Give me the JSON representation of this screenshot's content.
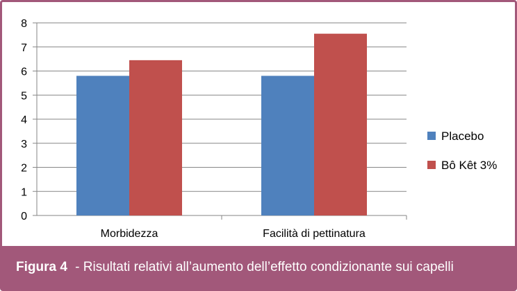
{
  "chart_data": {
    "type": "bar",
    "categories": [
      "Morbidezza",
      "Facilità di pettinatura"
    ],
    "series": [
      {
        "name": "Placebo",
        "values": [
          5.8,
          5.8
        ],
        "color": "#4f81bd"
      },
      {
        "name": "Bô Kêt 3%",
        "values": [
          6.45,
          7.55
        ],
        "color": "#c0504d"
      }
    ],
    "ylim": [
      0,
      8
    ],
    "yticks": [
      0,
      1,
      2,
      3,
      4,
      5,
      6,
      7,
      8
    ],
    "grid": true,
    "legend_position": "right"
  },
  "caption": {
    "label": "Figura 4",
    "separator": " - ",
    "text": "Risultati relativi all’aumento dell’effetto condizionante sui capelli"
  },
  "colors": {
    "accent": "#a2587a",
    "gridline": "#868686"
  }
}
